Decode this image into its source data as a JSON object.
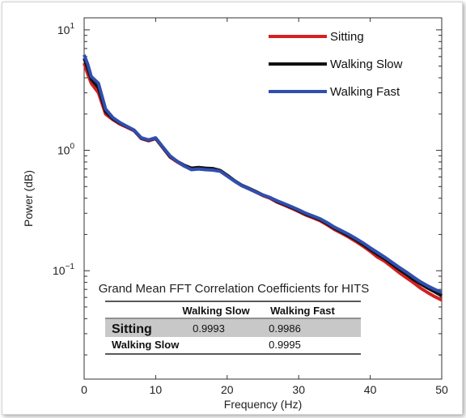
{
  "chart_data": {
    "type": "line",
    "xlabel": "Frequency (Hz)",
    "ylabel": "Power (dB)",
    "xlim": [
      0,
      50
    ],
    "ylim_log10": [
      -1.9,
      1.1
    ],
    "yscale": "log",
    "x_ticks": [
      0,
      10,
      20,
      30,
      40,
      50
    ],
    "y_ticks": [
      {
        "base": "10",
        "exp": "1",
        "value": 10
      },
      {
        "base": "10",
        "exp": "0",
        "value": 1
      },
      {
        "base": "10",
        "exp": "−1",
        "value": 0.1
      }
    ],
    "grid": false,
    "legend": "top-right",
    "x": [
      0,
      0.5,
      1,
      2,
      3,
      4,
      5,
      6,
      7,
      8,
      9,
      10,
      11,
      12,
      13,
      14,
      15,
      16,
      17,
      18,
      19,
      20,
      21,
      22,
      23,
      24,
      25,
      26,
      27,
      28,
      29,
      30,
      31,
      32,
      33,
      34,
      35,
      36,
      37,
      38,
      39,
      40,
      41,
      42,
      43,
      44,
      45,
      46,
      47,
      48,
      49,
      50
    ],
    "series": [
      {
        "name": "Sitting",
        "color": "#d42020",
        "values": [
          5.3,
          4.3,
          3.6,
          3.0,
          2.0,
          1.8,
          1.65,
          1.55,
          1.45,
          1.25,
          1.2,
          1.25,
          1.05,
          0.88,
          0.8,
          0.74,
          0.7,
          0.71,
          0.7,
          0.7,
          0.68,
          0.62,
          0.56,
          0.51,
          0.48,
          0.45,
          0.42,
          0.4,
          0.37,
          0.35,
          0.33,
          0.31,
          0.29,
          0.275,
          0.26,
          0.24,
          0.22,
          0.205,
          0.19,
          0.175,
          0.16,
          0.145,
          0.13,
          0.12,
          0.108,
          0.097,
          0.088,
          0.08,
          0.072,
          0.066,
          0.061,
          0.057
        ]
      },
      {
        "name": "Walking Slow",
        "color": "#111111",
        "values": [
          5.8,
          4.8,
          3.9,
          3.3,
          2.1,
          1.83,
          1.68,
          1.57,
          1.46,
          1.26,
          1.21,
          1.26,
          1.06,
          0.89,
          0.81,
          0.75,
          0.71,
          0.72,
          0.71,
          0.705,
          0.68,
          0.62,
          0.56,
          0.515,
          0.485,
          0.455,
          0.425,
          0.405,
          0.375,
          0.355,
          0.335,
          0.315,
          0.295,
          0.28,
          0.265,
          0.245,
          0.225,
          0.21,
          0.195,
          0.18,
          0.165,
          0.15,
          0.137,
          0.126,
          0.114,
          0.103,
          0.094,
          0.085,
          0.078,
          0.072,
          0.067,
          0.062
        ]
      },
      {
        "name": "Walking Fast",
        "color": "#2f4fb0",
        "values": [
          6.2,
          5.2,
          4.1,
          3.6,
          2.2,
          1.87,
          1.7,
          1.58,
          1.47,
          1.27,
          1.22,
          1.27,
          1.07,
          0.9,
          0.81,
          0.74,
          0.69,
          0.7,
          0.69,
          0.685,
          0.67,
          0.61,
          0.555,
          0.51,
          0.48,
          0.45,
          0.425,
          0.405,
          0.38,
          0.36,
          0.34,
          0.32,
          0.3,
          0.285,
          0.27,
          0.25,
          0.23,
          0.215,
          0.2,
          0.185,
          0.17,
          0.155,
          0.142,
          0.13,
          0.118,
          0.107,
          0.098,
          0.089,
          0.081,
          0.075,
          0.07,
          0.066
        ]
      }
    ],
    "table": {
      "title": "Grand Mean FFT Correlation Coefficients for HITS",
      "columns": [
        "",
        "Walking Slow",
        "Walking Fast"
      ],
      "rows": [
        {
          "label": "Sitting",
          "values": [
            "0.9993",
            "0.9986"
          ]
        },
        {
          "label": "Walking Slow",
          "values": [
            "",
            "0.9995"
          ]
        }
      ]
    }
  }
}
